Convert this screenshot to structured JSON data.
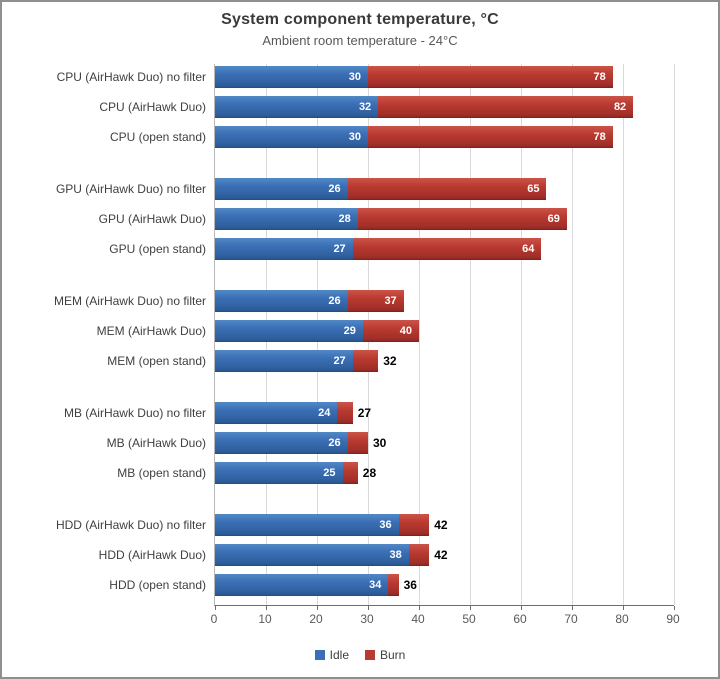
{
  "chart_data": {
    "type": "bar",
    "orientation": "horizontal-stacked-overlap",
    "title": "System component temperature, °C",
    "subtitle": "Ambient room temperature - 24°C",
    "x_axis": {
      "min": 0,
      "max": 90,
      "ticks": [
        0,
        10,
        20,
        30,
        40,
        50,
        60,
        70,
        80,
        90
      ]
    },
    "grid": true,
    "legend_position": "bottom",
    "legend": [
      {
        "label": "Idle",
        "color": "#3a6eb5"
      },
      {
        "label": "Burn",
        "color": "#b93a30"
      }
    ],
    "groups": [
      {
        "name": "CPU",
        "rows": [
          {
            "label": "CPU (AirHawk Duo) no filter",
            "idle": 30,
            "burn": 78
          },
          {
            "label": "CPU (AirHawk Duo)",
            "idle": 32,
            "burn": 82
          },
          {
            "label": "CPU (open stand)",
            "idle": 30,
            "burn": 78
          }
        ]
      },
      {
        "name": "GPU",
        "rows": [
          {
            "label": "GPU (AirHawk Duo) no filter",
            "idle": 26,
            "burn": 65
          },
          {
            "label": "GPU (AirHawk Duo)",
            "idle": 28,
            "burn": 69
          },
          {
            "label": "GPU (open stand)",
            "idle": 27,
            "burn": 64
          }
        ]
      },
      {
        "name": "MEM",
        "rows": [
          {
            "label": "MEM (AirHawk Duo) no filter",
            "idle": 26,
            "burn": 37
          },
          {
            "label": "MEM (AirHawk Duo)",
            "idle": 29,
            "burn": 40
          },
          {
            "label": "MEM (open stand)",
            "idle": 27,
            "burn": 32
          }
        ]
      },
      {
        "name": "MB",
        "rows": [
          {
            "label": "MB (AirHawk Duo) no filter",
            "idle": 24,
            "burn": 27
          },
          {
            "label": "MB (AirHawk Duo)",
            "idle": 26,
            "burn": 30
          },
          {
            "label": "MB (open stand)",
            "idle": 25,
            "burn": 28
          }
        ]
      },
      {
        "name": "HDD",
        "rows": [
          {
            "label": "HDD (AirHawk Duo) no filter",
            "idle": 36,
            "burn": 42
          },
          {
            "label": "HDD (AirHawk Duo)",
            "idle": 38,
            "burn": 42
          },
          {
            "label": "HDD (open stand)",
            "idle": 34,
            "burn": 36
          }
        ]
      }
    ]
  },
  "colors": {
    "idle_blue": "#3a6eb5",
    "burn_red": "#b93a30",
    "gridline": "#d9d9d9",
    "axis_line": "#6e6e6e",
    "border": "#8f8f8f"
  }
}
